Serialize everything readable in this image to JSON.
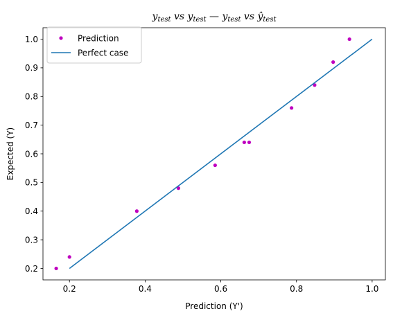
{
  "chart_data": {
    "type": "scatter",
    "title": {
      "part1_main": "y",
      "part1_sub": "test",
      "part1_vs": " vs ",
      "part2_main": "y",
      "part2_sub": "test",
      "separator": "  —  ",
      "part3_main": "y",
      "part3_sub": "test",
      "part3_vs": " vs ",
      "part4_main": "ŷ",
      "part4_sub": "test"
    },
    "xlabel": "Prediction (Y')",
    "ylabel": "Expected (Y)",
    "xlim": [
      0.13,
      1.035
    ],
    "ylim": [
      0.16,
      1.04
    ],
    "xticks": [
      0.2,
      0.4,
      0.6,
      0.8,
      1.0
    ],
    "xtick_labels": [
      "0.2",
      "0.4",
      "0.6",
      "0.8",
      "1.0"
    ],
    "yticks": [
      0.2,
      0.3,
      0.4,
      0.5,
      0.6,
      0.7,
      0.8,
      0.9,
      1.0
    ],
    "ytick_labels": [
      "0.2",
      "0.3",
      "0.4",
      "0.5",
      "0.6",
      "0.7",
      "0.8",
      "0.9",
      "1.0"
    ],
    "grid": false,
    "legend_position": "top-left",
    "series": [
      {
        "name": "Prediction",
        "kind": "scatter",
        "color": "#bf00bf",
        "x": [
          0.165,
          0.2,
          0.378,
          0.488,
          0.585,
          0.662,
          0.675,
          0.787,
          0.848,
          0.897,
          0.94
        ],
        "y": [
          0.2,
          0.24,
          0.4,
          0.48,
          0.56,
          0.64,
          0.64,
          0.76,
          0.84,
          0.92,
          1.0
        ]
      },
      {
        "name": "Perfect case",
        "kind": "line",
        "color": "#1f77b4",
        "x": [
          0.2,
          1.0
        ],
        "y": [
          0.2,
          1.0
        ]
      }
    ]
  }
}
